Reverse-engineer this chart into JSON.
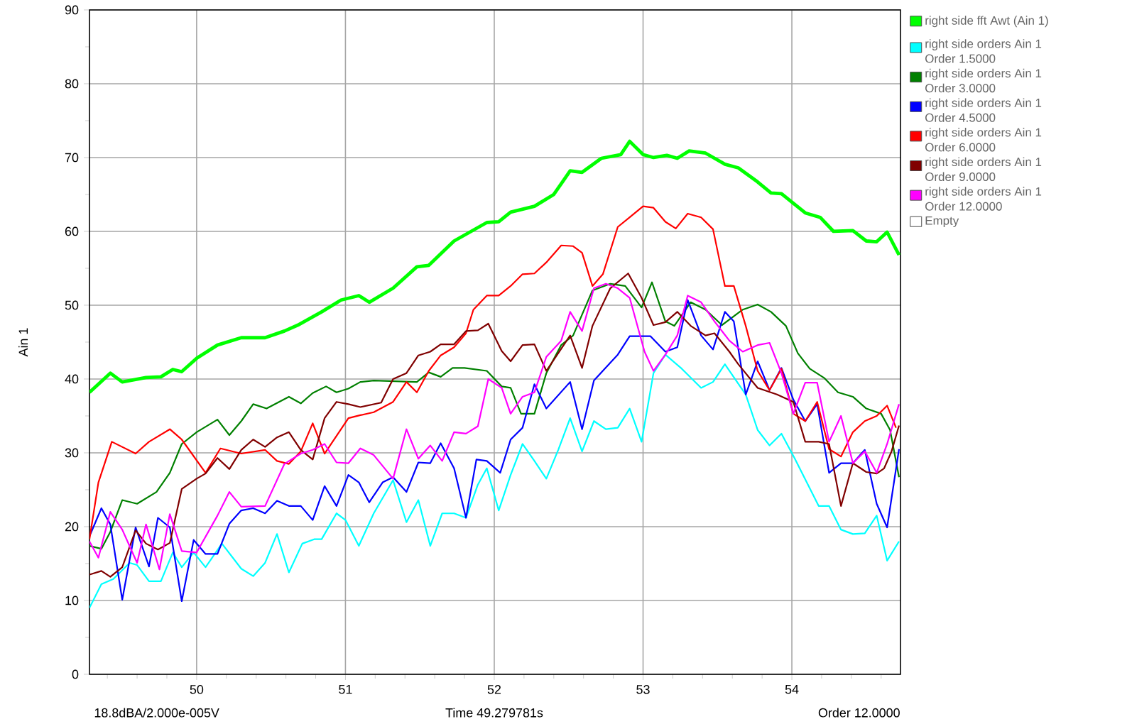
{
  "chart_data": {
    "type": "line",
    "ylabel": "Ain 1",
    "annotations": [
      "18.8dBA/2.000e-005V",
      "Time 49.279781s",
      "Order 12.0000"
    ],
    "xlim": [
      49.28,
      54.73
    ],
    "ylim": [
      0,
      90
    ],
    "xticks": [
      {
        "value": 49.4,
        "label": null
      },
      {
        "value": 49.6,
        "label": null
      },
      {
        "value": 49.8,
        "label": null
      },
      50,
      {
        "value": 50.2,
        "label": null
      },
      {
        "value": 50.4,
        "label": null
      },
      {
        "value": 50.6,
        "label": null
      },
      {
        "value": 50.8,
        "label": null
      },
      51,
      {
        "value": 51.2,
        "label": null
      },
      {
        "value": 51.4,
        "label": null
      },
      {
        "value": 51.6,
        "label": null
      },
      {
        "value": 51.8,
        "label": null
      },
      52,
      {
        "value": 52.2,
        "label": null
      },
      {
        "value": 52.4,
        "label": null
      },
      {
        "value": 52.6,
        "label": null
      },
      {
        "value": 52.8,
        "label": null
      },
      53,
      {
        "value": 53.2,
        "label": null
      },
      {
        "value": 53.4,
        "label": null
      },
      {
        "value": 53.6,
        "label": null
      },
      {
        "value": 53.8,
        "label": null
      },
      54,
      {
        "value": 54.2,
        "label": null
      },
      {
        "value": 54.4,
        "label": null
      },
      {
        "value": 54.6,
        "label": null
      }
    ],
    "yticks": [
      0,
      {
        "value": 5,
        "label": null
      },
      10,
      {
        "value": 15,
        "label": null
      },
      20,
      {
        "value": 25,
        "label": null
      },
      30,
      {
        "value": 35,
        "label": null
      },
      40,
      {
        "value": 45,
        "label": null
      },
      50,
      {
        "value": 55,
        "label": null
      },
      60,
      {
        "value": 65,
        "label": null
      },
      70,
      {
        "value": 75,
        "label": null
      },
      80,
      {
        "value": 85,
        "label": null
      },
      90
    ],
    "grid": true,
    "legend": "right",
    "marker": "none",
    "line_style": "solid",
    "series": [
      {
        "name": "right side fft Awt (Ain 1)",
        "color": "#00ff00",
        "x": [
          49.28,
          49.42,
          49.5,
          49.66,
          49.76,
          49.84,
          49.9,
          50.0,
          50.14,
          50.3,
          50.46,
          50.59,
          50.68,
          50.84,
          50.97,
          51.09,
          51.16,
          51.32,
          51.48,
          51.56,
          51.73,
          51.95,
          52.03,
          52.11,
          52.27,
          52.4,
          52.51,
          52.59,
          52.72,
          52.85,
          52.91,
          53.0,
          53.07,
          53.16,
          53.23,
          53.31,
          53.42,
          53.55,
          53.64,
          53.77,
          53.86,
          53.93,
          54.09,
          54.19,
          54.28,
          54.41,
          54.5,
          54.57,
          54.64,
          54.72
        ],
        "values": [
          38.2,
          40.8,
          39.6,
          40.2,
          40.3,
          41.3,
          41.0,
          42.8,
          44.6,
          45.6,
          45.6,
          46.5,
          47.3,
          49.1,
          50.7,
          51.3,
          50.4,
          52.3,
          55.2,
          55.4,
          58.7,
          61.2,
          61.3,
          62.6,
          63.4,
          65.0,
          68.2,
          68.0,
          69.9,
          70.4,
          72.2,
          70.4,
          70.0,
          70.3,
          69.9,
          70.9,
          70.6,
          69.1,
          68.6,
          66.7,
          65.2,
          65.1,
          62.5,
          61.9,
          60.0,
          60.1,
          58.7,
          58.6,
          59.9,
          56.8
        ]
      },
      {
        "name": "right side orders Ain 1 Order 1.5000",
        "color": "#00ffff",
        "x": [
          49.28,
          49.36,
          49.44,
          49.55,
          49.6,
          49.68,
          49.76,
          49.84,
          49.9,
          49.98,
          50.06,
          50.17,
          50.3,
          50.38,
          50.46,
          50.54,
          50.62,
          50.71,
          50.79,
          50.84,
          50.94,
          51.0,
          51.09,
          51.19,
          51.32,
          51.41,
          51.49,
          51.57,
          51.65,
          51.73,
          51.81,
          51.89,
          51.95,
          52.03,
          52.11,
          52.19,
          52.27,
          52.35,
          52.43,
          52.51,
          52.59,
          52.67,
          52.75,
          52.83,
          52.91,
          52.99,
          53.07,
          53.15,
          53.26,
          53.39,
          53.47,
          53.55,
          53.69,
          53.77,
          53.85,
          53.93,
          54.02,
          54.18,
          54.25,
          54.33,
          54.41,
          54.49,
          54.57,
          54.64,
          54.72
        ],
        "values": [
          9.0,
          12.2,
          12.9,
          15.1,
          14.8,
          12.6,
          12.6,
          16.5,
          14.5,
          16.5,
          14.5,
          17.7,
          14.3,
          13.3,
          15.1,
          19.0,
          13.8,
          17.7,
          18.3,
          18.3,
          21.8,
          20.9,
          17.4,
          21.8,
          26.3,
          20.6,
          23.6,
          17.4,
          21.8,
          21.8,
          21.2,
          25.7,
          27.9,
          22.2,
          27.0,
          31.2,
          28.9,
          26.5,
          30.4,
          34.7,
          30.2,
          34.3,
          33.2,
          33.4,
          36.0,
          31.5,
          40.8,
          43.3,
          41.4,
          38.8,
          39.6,
          42.0,
          37.9,
          33.1,
          31.0,
          32.6,
          29.2,
          22.8,
          22.8,
          19.6,
          19.0,
          19.1,
          21.5,
          15.4,
          18.0
        ]
      },
      {
        "name": "right side orders Ain 1 Order 3.0000",
        "color": "#008000",
        "x": [
          49.28,
          49.36,
          49.42,
          49.5,
          49.6,
          49.73,
          49.82,
          49.9,
          50.0,
          50.14,
          50.22,
          50.3,
          50.38,
          50.47,
          50.62,
          50.7,
          50.78,
          50.87,
          50.94,
          51.02,
          51.1,
          51.19,
          51.48,
          51.56,
          51.64,
          51.72,
          51.8,
          51.95,
          52.05,
          52.11,
          52.18,
          52.27,
          52.35,
          52.45,
          52.53,
          52.66,
          52.78,
          52.88,
          52.99,
          53.06,
          53.15,
          53.21,
          53.32,
          53.42,
          53.53,
          53.67,
          53.77,
          53.86,
          53.96,
          54.04,
          54.12,
          54.22,
          54.31,
          54.41,
          54.5,
          54.6,
          54.66,
          54.72
        ],
        "values": [
          17.4,
          17.0,
          19.3,
          23.6,
          23.1,
          24.7,
          27.3,
          31.2,
          32.8,
          34.5,
          32.4,
          34.3,
          36.6,
          36.0,
          37.6,
          36.7,
          38.1,
          39.0,
          38.2,
          38.7,
          39.6,
          39.8,
          39.6,
          40.9,
          40.3,
          41.5,
          41.5,
          41.1,
          39.0,
          38.8,
          35.3,
          35.3,
          40.8,
          44.6,
          45.9,
          52.0,
          52.9,
          52.6,
          49.7,
          53.1,
          47.8,
          47.2,
          50.4,
          49.4,
          47.3,
          49.4,
          50.1,
          49.1,
          47.2,
          43.5,
          41.4,
          40.1,
          38.2,
          37.6,
          36.0,
          35.3,
          33.1,
          26.7
        ]
      },
      {
        "name": "right side orders Ain 1 Order 4.5000",
        "color": "#0000ff",
        "x": [
          49.28,
          49.36,
          49.42,
          49.5,
          49.59,
          49.68,
          49.74,
          49.82,
          49.9,
          49.98,
          50.06,
          50.14,
          50.22,
          50.3,
          50.38,
          50.46,
          50.54,
          50.62,
          50.7,
          50.78,
          50.86,
          50.94,
          51.02,
          51.09,
          51.16,
          51.25,
          51.32,
          51.41,
          51.49,
          51.57,
          51.64,
          51.73,
          51.81,
          51.88,
          51.95,
          52.04,
          52.11,
          52.19,
          52.27,
          52.35,
          52.51,
          52.59,
          52.67,
          52.83,
          52.91,
          53.05,
          53.15,
          53.23,
          53.3,
          53.39,
          53.47,
          53.55,
          53.61,
          53.69,
          53.77,
          53.85,
          53.93,
          54.01,
          54.09,
          54.17,
          54.25,
          54.33,
          54.41,
          54.49,
          54.57,
          54.64,
          54.72
        ],
        "values": [
          18.7,
          22.5,
          20.3,
          10.1,
          19.9,
          14.6,
          21.2,
          19.9,
          9.9,
          18.2,
          16.3,
          16.3,
          20.4,
          22.2,
          22.5,
          21.8,
          23.5,
          22.8,
          22.8,
          20.9,
          25.5,
          22.8,
          27.0,
          26.0,
          23.3,
          26.0,
          26.7,
          24.7,
          28.7,
          28.6,
          31.3,
          27.9,
          21.2,
          29.1,
          28.9,
          27.3,
          31.8,
          33.4,
          39.3,
          36.0,
          39.6,
          33.2,
          39.8,
          43.3,
          45.8,
          45.8,
          43.7,
          44.3,
          50.7,
          45.9,
          44.0,
          49.1,
          47.8,
          37.9,
          42.4,
          38.5,
          41.5,
          37.2,
          34.3,
          36.6,
          27.3,
          28.6,
          28.6,
          30.4,
          23.1,
          19.9,
          30.5
        ]
      },
      {
        "name": "right side orders Ain 1 Order 6.0000",
        "color": "#ff0000",
        "x": [
          49.28,
          49.34,
          49.43,
          49.59,
          49.68,
          49.82,
          49.9,
          50.06,
          50.16,
          50.3,
          50.46,
          50.54,
          50.62,
          50.7,
          50.78,
          50.86,
          51.02,
          51.1,
          51.19,
          51.32,
          51.41,
          51.48,
          51.56,
          51.64,
          51.73,
          51.81,
          51.86,
          51.95,
          52.03,
          52.11,
          52.19,
          52.27,
          52.35,
          52.45,
          52.53,
          52.59,
          52.66,
          52.73,
          52.83,
          52.91,
          53.0,
          53.07,
          53.15,
          53.22,
          53.3,
          53.39,
          53.47,
          53.55,
          53.61,
          53.69,
          53.77,
          53.85,
          53.93,
          54.01,
          54.09,
          54.17,
          54.25,
          54.33,
          54.41,
          54.49,
          54.57,
          54.64,
          54.7
        ],
        "values": [
          18.3,
          26.0,
          31.5,
          29.9,
          31.5,
          33.2,
          31.8,
          27.3,
          30.6,
          29.9,
          30.4,
          28.9,
          28.5,
          30.2,
          34.0,
          29.9,
          34.7,
          35.1,
          35.5,
          36.9,
          39.6,
          38.2,
          41.1,
          43.2,
          44.3,
          46.2,
          49.4,
          51.3,
          51.3,
          52.6,
          54.2,
          54.3,
          55.8,
          58.1,
          58.0,
          57.1,
          52.6,
          54.2,
          60.6,
          61.9,
          63.4,
          63.2,
          61.3,
          60.4,
          62.4,
          61.9,
          60.3,
          52.6,
          52.6,
          47.2,
          41.1,
          38.5,
          41.4,
          35.3,
          34.3,
          36.9,
          30.5,
          29.5,
          32.8,
          34.3,
          35.0,
          36.4,
          33.4
        ]
      },
      {
        "name": "right side orders Ain 1 Order 9.0000",
        "color": "#800000",
        "x": [
          49.28,
          49.36,
          49.42,
          49.5,
          49.59,
          49.66,
          49.74,
          49.82,
          49.9,
          50.0,
          50.06,
          50.14,
          50.22,
          50.3,
          50.38,
          50.46,
          50.54,
          50.62,
          50.7,
          50.78,
          50.86,
          50.94,
          51.02,
          51.1,
          51.24,
          51.32,
          51.41,
          51.49,
          51.57,
          51.64,
          51.73,
          51.81,
          51.89,
          51.96,
          52.05,
          52.11,
          52.19,
          52.27,
          52.35,
          52.51,
          52.59,
          52.66,
          52.78,
          52.9,
          52.99,
          53.07,
          53.15,
          53.23,
          53.32,
          53.42,
          53.48,
          53.58,
          53.64,
          53.77,
          53.9,
          54.01,
          54.09,
          54.18,
          54.25,
          54.33,
          54.41,
          54.5,
          54.57,
          54.62,
          54.67,
          54.72
        ],
        "values": [
          13.5,
          14.0,
          13.2,
          14.5,
          19.5,
          17.7,
          16.9,
          17.8,
          25.1,
          26.5,
          27.2,
          29.3,
          27.8,
          30.4,
          31.8,
          30.8,
          32.1,
          32.8,
          30.4,
          29.1,
          34.7,
          36.9,
          36.6,
          36.2,
          36.8,
          40.0,
          40.8,
          43.2,
          43.7,
          44.7,
          44.7,
          46.5,
          46.6,
          47.5,
          43.8,
          42.4,
          44.6,
          44.7,
          41.1,
          45.9,
          41.5,
          47.2,
          52.3,
          54.3,
          51.0,
          47.3,
          47.7,
          49.1,
          47.2,
          45.9,
          46.2,
          43.7,
          42.0,
          38.8,
          37.9,
          36.9,
          31.5,
          31.5,
          31.2,
          22.8,
          28.6,
          27.4,
          27.2,
          27.9,
          30.2,
          33.7
        ]
      },
      {
        "name": "right side orders Ain 1 Order 12.0000",
        "color": "#ff00ff",
        "x": [
          49.28,
          49.34,
          49.42,
          49.5,
          49.6,
          49.66,
          49.75,
          49.82,
          49.9,
          50.0,
          50.14,
          50.22,
          50.3,
          50.46,
          50.59,
          50.7,
          50.78,
          50.86,
          50.94,
          51.02,
          51.1,
          51.19,
          51.32,
          51.41,
          51.49,
          51.57,
          51.65,
          51.73,
          51.81,
          51.89,
          51.96,
          52.05,
          52.11,
          52.19,
          52.27,
          52.35,
          52.45,
          52.51,
          52.59,
          52.67,
          52.75,
          52.83,
          52.91,
          53.01,
          53.07,
          53.15,
          53.23,
          53.3,
          53.39,
          53.48,
          53.58,
          53.67,
          53.77,
          53.85,
          53.93,
          54.01,
          54.09,
          54.17,
          54.25,
          54.33,
          54.41,
          54.49,
          54.57,
          54.64,
          54.72
        ],
        "values": [
          18.0,
          15.8,
          22.0,
          19.6,
          15.1,
          20.3,
          14.2,
          21.7,
          16.7,
          16.5,
          21.5,
          24.7,
          22.7,
          22.8,
          28.5,
          29.9,
          30.4,
          31.2,
          28.7,
          28.6,
          30.6,
          29.7,
          26.5,
          33.2,
          29.2,
          31.0,
          28.9,
          32.8,
          32.6,
          33.6,
          40.0,
          38.8,
          35.3,
          37.6,
          38.2,
          43.0,
          45.2,
          49.1,
          46.5,
          52.3,
          52.9,
          52.3,
          51.0,
          43.7,
          41.1,
          43.3,
          45.9,
          51.3,
          50.4,
          47.8,
          45.2,
          43.7,
          44.6,
          44.9,
          40.8,
          35.3,
          39.5,
          39.5,
          31.5,
          35.0,
          28.6,
          30.2,
          27.3,
          31.2,
          36.6
        ]
      },
      {
        "name": "Empty",
        "color": "#ffffff"
      }
    ]
  }
}
